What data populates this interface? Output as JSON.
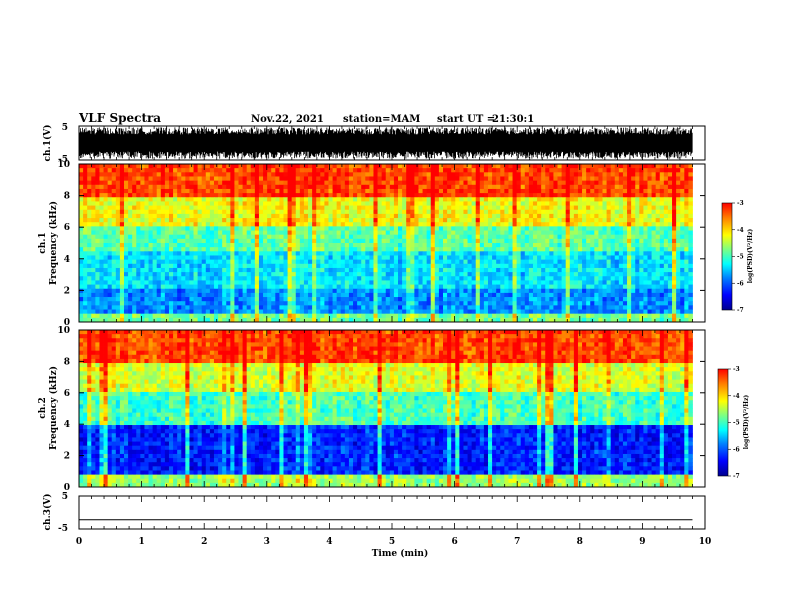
{
  "header": {
    "title": "VLF Spectra",
    "date": "Nov.22, 2021",
    "station": "station=MAM",
    "start_label": "start UT =",
    "start_time": "21:30:1"
  },
  "colors": {
    "jet": [
      "#00008f",
      "#0000ff",
      "#0080ff",
      "#00ffff",
      "#80ff80",
      "#ffff00",
      "#ff8000",
      "#ff0000"
    ],
    "waveform": "#000000",
    "frame": "#000000"
  },
  "chart_data": [
    {
      "type": "line",
      "name": "ch1-waveform",
      "ylabel": "ch.1(V)",
      "ylim": [
        -5,
        5
      ],
      "yticks": [
        "5",
        "-5"
      ],
      "x_range_min": [
        0,
        9.8
      ],
      "envelope_v": [
        -4.6,
        4.6
      ],
      "description_values": "dense oscillating signal saturating near ±4.6 V"
    },
    {
      "type": "heatmap",
      "name": "ch1-spectrogram",
      "ylabel_line1": "ch.1",
      "ylabel_line2": "Frequency (kHz)",
      "ylim": [
        0,
        10
      ],
      "yticks": [
        "0",
        "2",
        "4",
        "6",
        "8",
        "10"
      ],
      "x_range_min": [
        0,
        9.8
      ],
      "colorbar": {
        "label": "log(PSD)(V²/Hz)",
        "range": [
          -7,
          -3
        ],
        "ticks": [
          "-3",
          "-4",
          "-5",
          "-6",
          "-7"
        ]
      },
      "band_log_psd": [
        {
          "f_khz": [
            0,
            0.5
          ],
          "value": -4.8
        },
        {
          "f_khz": [
            0.5,
            2
          ],
          "value": -5.8
        },
        {
          "f_khz": [
            2,
            4.5
          ],
          "value": -5.4
        },
        {
          "f_khz": [
            4.5,
            6
          ],
          "value": -4.9
        },
        {
          "f_khz": [
            6,
            8
          ],
          "value": -4.2
        },
        {
          "f_khz": [
            8,
            10
          ],
          "value": -3.3
        }
      ]
    },
    {
      "type": "heatmap",
      "name": "ch2-spectrogram",
      "ylabel_line1": "ch.2",
      "ylabel_line2": "Frequency (kHz)",
      "ylim": [
        0,
        10
      ],
      "yticks": [
        "0",
        "2",
        "4",
        "6",
        "8",
        "10"
      ],
      "x_range_min": [
        0,
        9.8
      ],
      "colorbar": {
        "label": "log(PSD)(V²/Hz)",
        "range": [
          -7,
          -3
        ],
        "ticks": [
          "-3",
          "-4",
          "-5",
          "-6",
          "-7"
        ]
      },
      "band_log_psd": [
        {
          "f_khz": [
            0,
            0.7
          ],
          "value": -4.6
        },
        {
          "f_khz": [
            0.7,
            4
          ],
          "value": -6.3
        },
        {
          "f_khz": [
            4,
            6
          ],
          "value": -5.0
        },
        {
          "f_khz": [
            6,
            8
          ],
          "value": -4.3
        },
        {
          "f_khz": [
            8,
            10
          ],
          "value": -3.3
        }
      ]
    },
    {
      "type": "line",
      "name": "ch3-waveform",
      "ylabel": "ch.3(V)",
      "ylim": [
        -5,
        5
      ],
      "yticks": [
        "5",
        "-5"
      ],
      "x_range_min": [
        0,
        9.8
      ],
      "values_v": [
        -2.2,
        -2.2
      ]
    }
  ],
  "xaxis": {
    "label": "Time (min)",
    "xlim": [
      0,
      10
    ],
    "ticks": [
      "0",
      "1",
      "2",
      "3",
      "4",
      "5",
      "6",
      "7",
      "8",
      "9",
      "10"
    ]
  }
}
